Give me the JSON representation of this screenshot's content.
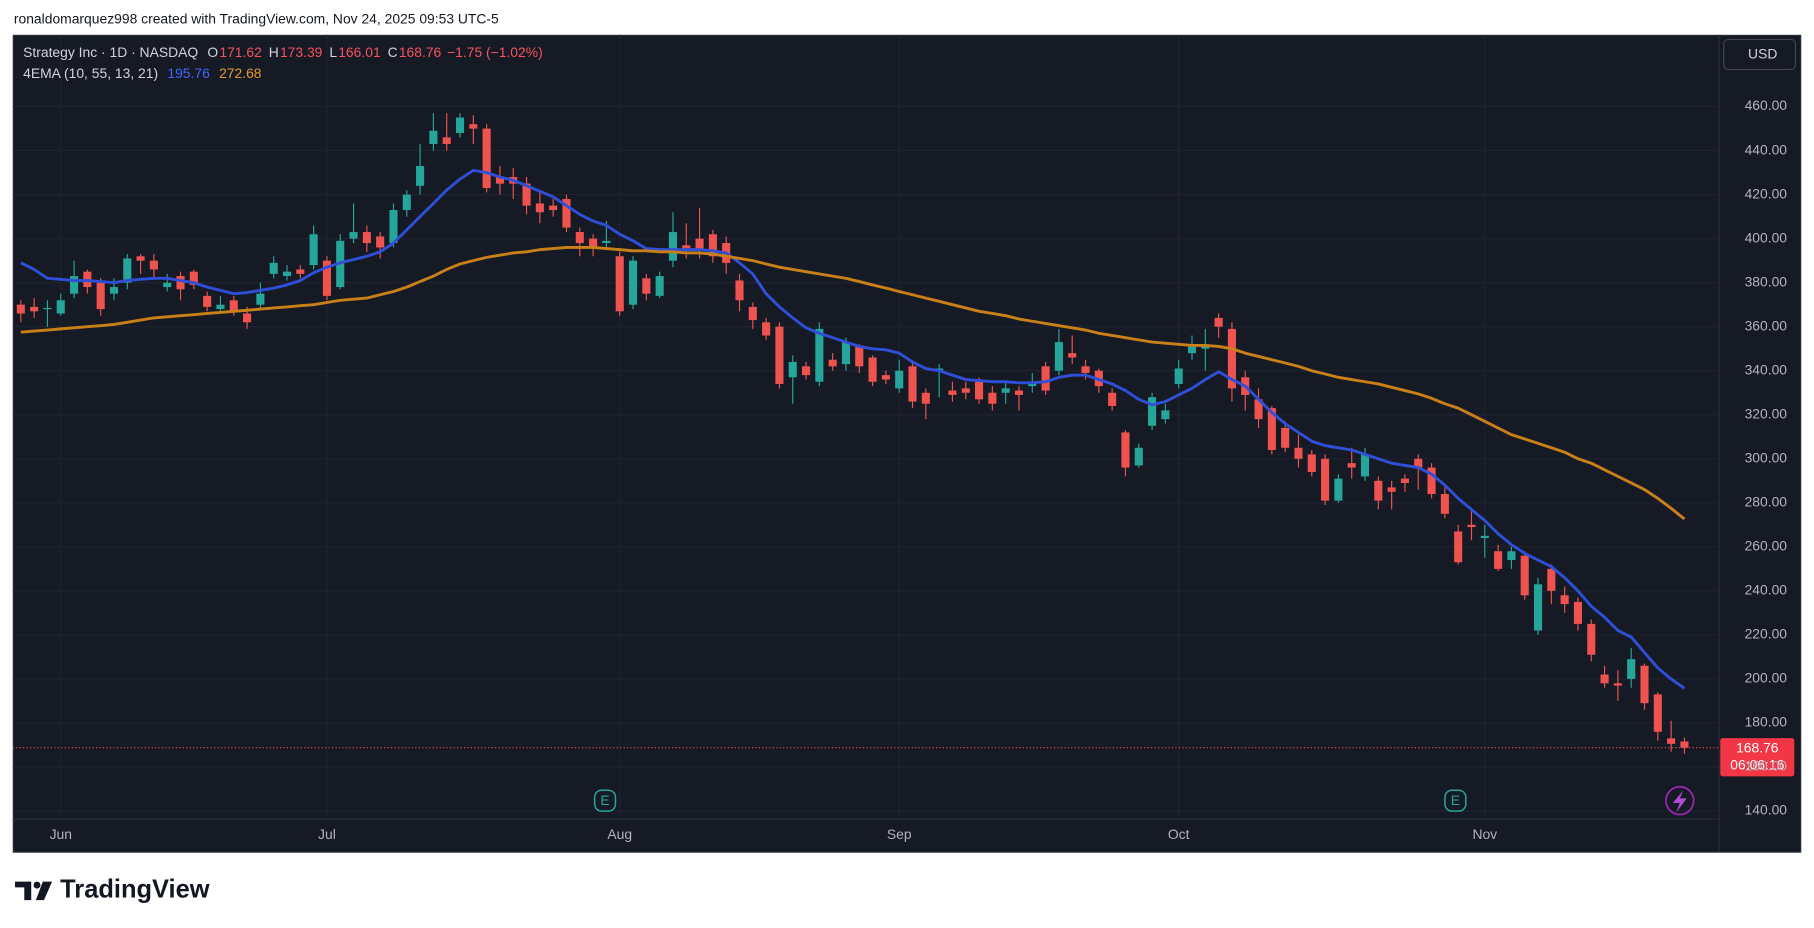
{
  "header": "ronaldomarquez998 created with TradingView.com, Nov 24, 2025 09:53 UTC-5",
  "footer": "TradingView",
  "chart_data": {
    "type": "candlestick",
    "title": "Strategy Inc · 1D · NASDAQ",
    "ohlc_keys": [
      "O",
      "H",
      "L",
      "C"
    ],
    "change": "−1.75 (−1.02%)",
    "indicator": "4EMA (10, 55, 13, 21)",
    "currency": "USD",
    "countdown": "06:06:16",
    "events": [
      "E",
      "E"
    ],
    "up_color": "#26a69a",
    "down_color": "#ef5350",
    "grid": true,
    "categories": [
      null,
      null,
      null,
      "Jun",
      null,
      null,
      null,
      null,
      null,
      null,
      null,
      null,
      null,
      null,
      null,
      null,
      null,
      null,
      null,
      null,
      null,
      null,
      null,
      "Jul",
      null,
      null,
      null,
      null,
      null,
      null,
      null,
      null,
      null,
      null,
      null,
      null,
      null,
      null,
      null,
      null,
      null,
      null,
      null,
      null,
      null,
      "Aug",
      null,
      null,
      null,
      null,
      null,
      null,
      null,
      null,
      null,
      null,
      null,
      null,
      null,
      null,
      null,
      null,
      null,
      null,
      null,
      null,
      "Sep",
      null,
      null,
      null,
      null,
      null,
      null,
      null,
      null,
      null,
      null,
      null,
      null,
      null,
      null,
      null,
      null,
      null,
      null,
      null,
      null,
      "Oct",
      null,
      null,
      null,
      null,
      null,
      null,
      null,
      null,
      null,
      null,
      null,
      null,
      null,
      null,
      null,
      null,
      null,
      null,
      null,
      null,
      null,
      null,
      "Nov",
      null,
      null,
      null,
      null,
      null,
      null,
      null,
      null,
      null,
      null,
      null,
      null,
      null,
      null,
      null
    ],
    "open": [
      370,
      369,
      368,
      366,
      375,
      385,
      380,
      375,
      380,
      392,
      390,
      378,
      383,
      385,
      374,
      368,
      372,
      366,
      370,
      384,
      383,
      386,
      388,
      390,
      378,
      400,
      403,
      401,
      398,
      413,
      424,
      443,
      446,
      448,
      452,
      450,
      428,
      428,
      425,
      416,
      415,
      418,
      403,
      400,
      398,
      392,
      370,
      382,
      374,
      390,
      397,
      400,
      402,
      398,
      381,
      369,
      362,
      360,
      337,
      342,
      335,
      345,
      343,
      351,
      346,
      338,
      332,
      342,
      330,
      340,
      331,
      332,
      335,
      330,
      330,
      331,
      333,
      342,
      340,
      348,
      342,
      340,
      330,
      312,
      297,
      315,
      318,
      334,
      348,
      350,
      364,
      359,
      337,
      327,
      323,
      314,
      305,
      302,
      300,
      281,
      298,
      292,
      290,
      287,
      291,
      300,
      296,
      284,
      267,
      270,
      264,
      258,
      254,
      256,
      222,
      250,
      238,
      235,
      225,
      202,
      198,
      200,
      206,
      193,
      173,
      171.62
    ],
    "high": [
      372,
      373,
      372,
      375,
      390,
      386,
      382,
      382,
      393,
      393,
      393,
      384,
      385,
      386,
      376,
      374,
      374,
      369,
      380,
      392,
      388,
      388,
      406,
      392,
      402,
      416,
      406,
      403,
      416,
      422,
      443,
      457,
      457,
      457,
      456,
      452,
      433,
      432,
      428,
      421,
      418,
      420,
      405,
      402,
      408,
      394,
      392,
      384,
      385,
      412,
      407,
      414,
      404,
      401,
      384,
      371,
      364,
      362,
      347,
      344,
      362,
      348,
      355,
      352,
      347,
      340,
      345,
      344,
      332,
      343,
      335,
      335,
      337,
      333,
      335,
      333,
      339,
      344,
      359,
      356,
      345,
      341,
      332,
      313,
      307,
      330,
      325,
      345,
      356,
      359,
      366,
      362,
      340,
      332,
      324,
      317,
      311,
      304,
      302,
      293,
      305,
      305,
      292,
      290,
      293,
      302,
      298,
      287,
      270,
      277,
      270,
      261,
      260,
      258,
      246,
      252,
      242,
      237,
      227,
      206,
      204,
      214,
      207,
      194,
      181,
      173.39
    ],
    "low": [
      362,
      364,
      360,
      365,
      373,
      375,
      365,
      372,
      377,
      384,
      382,
      376,
      372,
      377,
      367,
      366,
      365,
      359,
      368,
      382,
      381,
      382,
      386,
      372,
      377,
      398,
      394,
      391,
      396,
      410,
      420,
      440,
      440,
      446,
      443,
      421,
      420,
      418,
      411,
      407,
      410,
      403,
      392,
      392,
      395,
      365,
      368,
      372,
      373,
      387,
      391,
      391,
      389,
      384,
      367,
      359,
      354,
      332,
      325,
      336,
      333,
      340,
      340,
      339,
      333,
      334,
      330,
      323,
      318,
      328,
      326,
      327,
      325,
      322,
      325,
      322,
      330,
      329,
      338,
      343,
      336,
      330,
      322,
      292,
      296,
      313,
      316,
      332,
      345,
      340,
      355,
      326,
      322,
      314,
      302,
      303,
      296,
      292,
      279,
      280,
      291,
      290,
      277,
      277,
      285,
      286,
      282,
      273,
      252,
      263,
      255,
      249,
      250,
      236,
      220,
      234,
      230,
      222,
      208,
      196,
      190,
      196,
      186,
      172,
      167,
      166.01
    ],
    "close": [
      366,
      367,
      368.5,
      372,
      383,
      378,
      368,
      378,
      391,
      390,
      386,
      380,
      377,
      379,
      369,
      370,
      367,
      362,
      375,
      389,
      385,
      384,
      402,
      374,
      399,
      403,
      398,
      396,
      413,
      420,
      433,
      449,
      443,
      455,
      450,
      423,
      425,
      425,
      415,
      412,
      413,
      405,
      398,
      396,
      399,
      367,
      390,
      375,
      383,
      403,
      395,
      395,
      392,
      389,
      372,
      363,
      356,
      334,
      344,
      338,
      359,
      342,
      353,
      342,
      335,
      336,
      340,
      326,
      325,
      341,
      329,
      330,
      327,
      325,
      332,
      329,
      335,
      331,
      353,
      346,
      339,
      333,
      324,
      296,
      305,
      328,
      322,
      341,
      352,
      352,
      360,
      332,
      329,
      318,
      304,
      305,
      300,
      294,
      281,
      291,
      296,
      302,
      281,
      285,
      289,
      296,
      284,
      275,
      253,
      269,
      265,
      250,
      258,
      238,
      243,
      240,
      234,
      225,
      211,
      198,
      197,
      209,
      189,
      176,
      170.51,
      168.76
    ],
    "series": [
      {
        "color": "#2f4fd8",
        "values": [
          389,
          386,
          382,
          381.5,
          381,
          381,
          380.5,
          380,
          381,
          381.5,
          382,
          382,
          381,
          380,
          378,
          376.5,
          375,
          375.5,
          376.5,
          377.5,
          379,
          381,
          384.5,
          387,
          389,
          390.5,
          392,
          394,
          398,
          404,
          410,
          416,
          422,
          427,
          431,
          430,
          428,
          426.5,
          424,
          421.5,
          419,
          415,
          411,
          408,
          406,
          402,
          399,
          395.5,
          395,
          395,
          395,
          395,
          394.5,
          393.5,
          389,
          384,
          375,
          369,
          364,
          359.5,
          357,
          355,
          353,
          351,
          350,
          349.5,
          348,
          344,
          341,
          340,
          338,
          336,
          335.5,
          335,
          335,
          334.5,
          334.5,
          335,
          337,
          338,
          338,
          336,
          334,
          331,
          327,
          324.5,
          326,
          329,
          332,
          336,
          339.5,
          336,
          333,
          327,
          321,
          316,
          312,
          308,
          306,
          305,
          304,
          302,
          300,
          298,
          297,
          296,
          293,
          288,
          282,
          277,
          272,
          266,
          261,
          257,
          254,
          251,
          246,
          240,
          233,
          228,
          222,
          219,
          212,
          205,
          200,
          195.76
        ]
      },
      {
        "color": "#c98019",
        "values": [
          357.5,
          358,
          358.5,
          359,
          359.5,
          360,
          360.5,
          361,
          362,
          363,
          364,
          364.5,
          365,
          365.5,
          366,
          366.5,
          367,
          367.5,
          368,
          368.5,
          369,
          369.5,
          370,
          371,
          372,
          372.5,
          373,
          374.5,
          376,
          378,
          380.5,
          383,
          386,
          388.5,
          390,
          391.5,
          392.5,
          393.5,
          394,
          395,
          395.5,
          396,
          396,
          396,
          395.5,
          395,
          394.5,
          394.5,
          394,
          394,
          393.5,
          393.5,
          393,
          392,
          391,
          390,
          388.5,
          387,
          386,
          385,
          384,
          383,
          382,
          380.5,
          379,
          377.5,
          376,
          374.5,
          373,
          371.5,
          370,
          368.5,
          367,
          366,
          365,
          363.5,
          362.5,
          361.5,
          360.5,
          359.5,
          358.5,
          357,
          356,
          355,
          354,
          353,
          352.5,
          352,
          351.5,
          351.5,
          351,
          350,
          348,
          346.5,
          345,
          343.5,
          342,
          340,
          338.5,
          337,
          336,
          335,
          334,
          332.5,
          331,
          329.5,
          327.5,
          325,
          323,
          320,
          317,
          314,
          311,
          309,
          307,
          305,
          303,
          300,
          298,
          295,
          292,
          289,
          286,
          282,
          277.5,
          272.68
        ]
      }
    ],
    "ylim": [
      136.3,
      492.6
    ],
    "yticks": [
      {
        "value": 140,
        "label": "140.00"
      },
      {
        "value": 160,
        "label": "160.00"
      },
      {
        "value": 180,
        "label": "180.00"
      },
      {
        "value": 200,
        "label": "200.00"
      },
      {
        "value": 220,
        "label": "220.00"
      },
      {
        "value": 240,
        "label": "240.00"
      },
      {
        "value": 260,
        "label": "260.00"
      },
      {
        "value": 280,
        "label": "280.00"
      },
      {
        "value": 300,
        "label": "300.00"
      },
      {
        "value": 320,
        "label": "320.00"
      },
      {
        "value": 340,
        "label": "340.00"
      },
      {
        "value": 360,
        "label": "360.00"
      },
      {
        "value": 380,
        "label": "380.00"
      },
      {
        "value": 400,
        "label": "400.00"
      },
      {
        "value": 420,
        "label": "420.00"
      },
      {
        "value": 440,
        "label": "440.00"
      },
      {
        "value": 460,
        "label": "460.00"
      }
    ]
  }
}
